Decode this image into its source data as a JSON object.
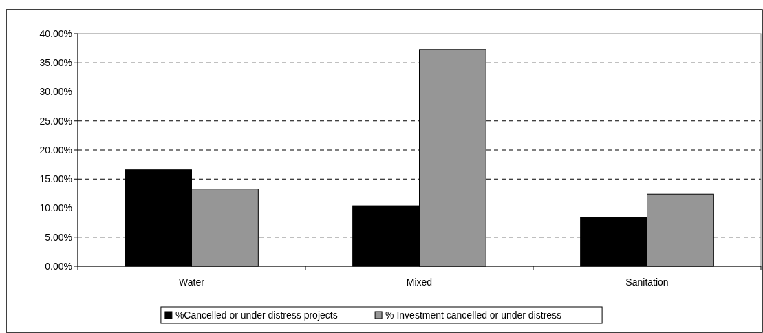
{
  "chart_data": {
    "type": "bar",
    "categories": [
      "Water",
      "Mixed",
      "Sanitation"
    ],
    "series": [
      {
        "name": "%Cancelled or under distress projects",
        "color": "#000000",
        "values": [
          16.6,
          10.4,
          8.4
        ]
      },
      {
        "name": "% Investment cancelled or under distress",
        "color": "#969696",
        "values": [
          13.3,
          37.3,
          12.4
        ]
      }
    ],
    "ylim": [
      0,
      40
    ],
    "yticks": [
      {
        "value": 0,
        "label": "0.00%"
      },
      {
        "value": 5,
        "label": "5.00%"
      },
      {
        "value": 10,
        "label": "10.00%"
      },
      {
        "value": 15,
        "label": "15.00%"
      },
      {
        "value": 20,
        "label": "20.00%"
      },
      {
        "value": 25,
        "label": "25.00%"
      },
      {
        "value": 30,
        "label": "30.00%"
      },
      {
        "value": 35,
        "label": "35.00%"
      },
      {
        "value": 40,
        "label": "40.00%"
      }
    ],
    "grid": "y",
    "legend": "bottom"
  }
}
